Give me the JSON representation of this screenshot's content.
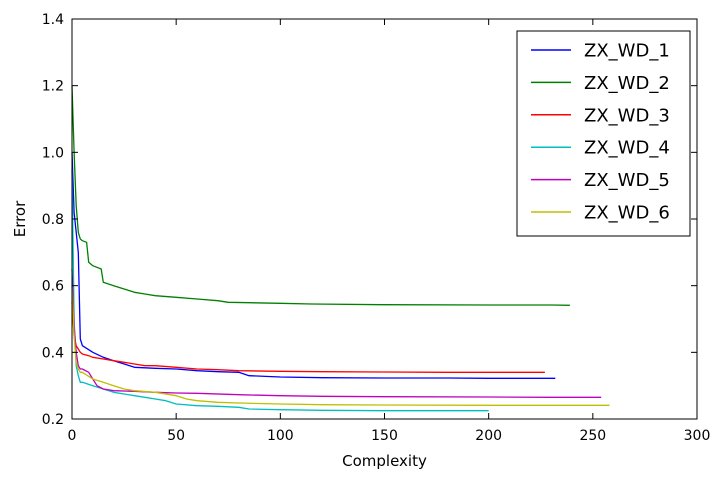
{
  "chart_data": {
    "type": "line",
    "title": "",
    "xlabel": "Complexity",
    "ylabel": "Error",
    "xlim": [
      0,
      300
    ],
    "ylim": [
      0.2,
      1.4
    ],
    "x_ticks": [
      0,
      50,
      100,
      150,
      200,
      250,
      300
    ],
    "x_tick_labels": [
      "0",
      "50",
      "100",
      "150",
      "200",
      "250",
      "300"
    ],
    "y_ticks": [
      0.2,
      0.4,
      0.6,
      0.8,
      1.0,
      1.2,
      1.4
    ],
    "y_tick_labels": [
      "0.2",
      "0.4",
      "0.6",
      "0.8",
      "1.0",
      "1.2",
      "1.4"
    ],
    "grid": false,
    "legend_position": "top-right",
    "series": [
      {
        "name": "ZX_WD_1",
        "color": "#0000ff",
        "x": [
          0,
          1,
          2,
          3,
          4,
          5,
          10,
          15,
          20,
          30,
          40,
          50,
          60,
          70,
          80,
          85,
          100,
          120,
          150,
          180,
          200,
          220,
          232
        ],
        "y": [
          1.0,
          0.82,
          0.76,
          0.7,
          0.44,
          0.42,
          0.4,
          0.385,
          0.375,
          0.355,
          0.352,
          0.35,
          0.345,
          0.342,
          0.34,
          0.33,
          0.326,
          0.324,
          0.323,
          0.323,
          0.322,
          0.322,
          0.322
        ]
      },
      {
        "name": "ZX_WD_2",
        "color": "#008000",
        "x": [
          0,
          1,
          2,
          3,
          4,
          5,
          7,
          8,
          10,
          14,
          15,
          20,
          25,
          30,
          35,
          40,
          50,
          60,
          70,
          75,
          85,
          100,
          115,
          150,
          200,
          230,
          239
        ],
        "y": [
          1.2,
          1.0,
          0.84,
          0.76,
          0.74,
          0.735,
          0.73,
          0.67,
          0.66,
          0.65,
          0.61,
          0.6,
          0.59,
          0.58,
          0.575,
          0.57,
          0.565,
          0.56,
          0.555,
          0.55,
          0.549,
          0.547,
          0.545,
          0.543,
          0.542,
          0.542,
          0.541
        ]
      },
      {
        "name": "ZX_WD_3",
        "color": "#ff0000",
        "x": [
          0,
          1,
          2,
          3,
          4,
          5,
          8,
          10,
          15,
          20,
          25,
          30,
          35,
          40,
          50,
          60,
          70,
          80,
          100,
          120,
          150,
          180,
          200,
          227
        ],
        "y": [
          0.55,
          0.45,
          0.42,
          0.41,
          0.4,
          0.395,
          0.39,
          0.385,
          0.38,
          0.375,
          0.37,
          0.365,
          0.36,
          0.36,
          0.355,
          0.35,
          0.348,
          0.345,
          0.343,
          0.342,
          0.341,
          0.34,
          0.34,
          0.34
        ]
      },
      {
        "name": "ZX_WD_4",
        "color": "#00bfbf",
        "x": [
          0,
          1,
          2,
          3,
          4,
          5,
          10,
          15,
          20,
          25,
          30,
          35,
          40,
          45,
          50,
          60,
          70,
          80,
          85,
          100,
          120,
          150,
          180,
          200
        ],
        "y": [
          0.95,
          0.5,
          0.36,
          0.33,
          0.31,
          0.31,
          0.3,
          0.29,
          0.28,
          0.275,
          0.27,
          0.265,
          0.26,
          0.255,
          0.245,
          0.24,
          0.238,
          0.235,
          0.23,
          0.228,
          0.226,
          0.225,
          0.225,
          0.225
        ]
      },
      {
        "name": "ZX_WD_5",
        "color": "#bf00bf",
        "x": [
          0,
          1,
          2,
          3,
          4,
          5,
          8,
          10,
          12,
          15,
          20,
          30,
          40,
          50,
          60,
          80,
          100,
          120,
          150,
          200,
          230,
          254
        ],
        "y": [
          0.65,
          0.48,
          0.4,
          0.36,
          0.35,
          0.35,
          0.34,
          0.32,
          0.3,
          0.29,
          0.285,
          0.283,
          0.28,
          0.278,
          0.277,
          0.273,
          0.27,
          0.268,
          0.267,
          0.266,
          0.265,
          0.265
        ]
      },
      {
        "name": "ZX_WD_6",
        "color": "#bfbf00",
        "x": [
          0,
          1,
          2,
          3,
          4,
          5,
          10,
          15,
          20,
          25,
          30,
          40,
          50,
          55,
          60,
          70,
          80,
          100,
          120,
          150,
          200,
          230,
          258
        ],
        "y": [
          0.6,
          0.45,
          0.37,
          0.35,
          0.34,
          0.34,
          0.32,
          0.31,
          0.3,
          0.29,
          0.285,
          0.28,
          0.27,
          0.26,
          0.255,
          0.25,
          0.248,
          0.245,
          0.243,
          0.242,
          0.241,
          0.241,
          0.241
        ]
      }
    ]
  }
}
